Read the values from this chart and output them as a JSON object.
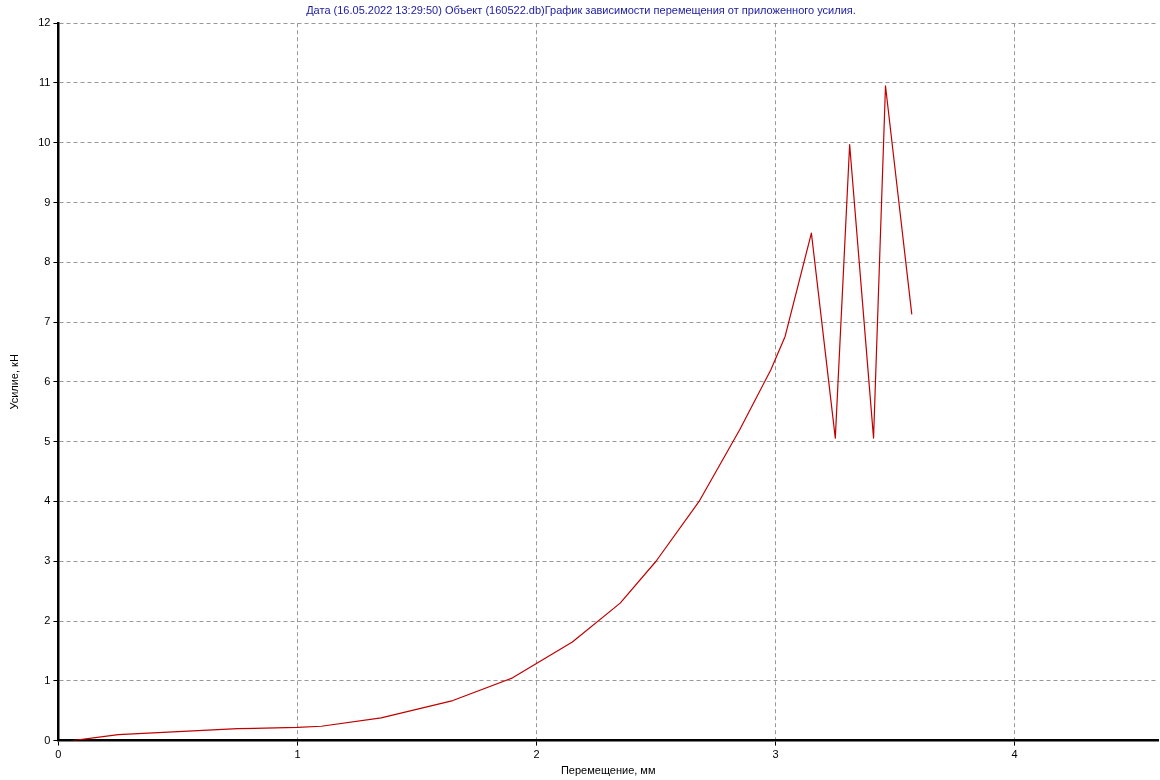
{
  "chart_data": {
    "type": "line",
    "title": "Дата (16.05.2022 13:29:50) Объект (160522.db)График зависимости перемещения от приложенного усилия.",
    "xlabel": "Перемещение, мм",
    "ylabel": "Усилие, кН",
    "x": [
      0.06,
      0.25,
      0.5,
      0.75,
      1.0,
      1.1,
      1.35,
      1.65,
      1.9,
      2.15,
      2.35,
      2.5,
      2.68,
      2.85,
      2.98,
      3.04,
      3.15,
      3.25,
      3.31,
      3.41,
      3.46,
      3.57
    ],
    "series": [
      {
        "color": "#c00000",
        "values": [
          0,
          0.1,
          0.15,
          0.2,
          0.22,
          0.24,
          0.38,
          0.67,
          1.05,
          1.65,
          2.3,
          3.0,
          4.0,
          5.2,
          6.2,
          6.76,
          8.49,
          5.06,
          9.97,
          5.06,
          10.95,
          7.13
        ]
      }
    ],
    "xlim": [
      0,
      4.6
    ],
    "xticks": [
      0,
      1,
      2,
      3,
      4
    ],
    "ylim": [
      0,
      12
    ],
    "yticks": [
      0,
      1,
      2,
      3,
      4,
      5,
      6,
      7,
      8,
      9,
      10,
      11,
      12
    ],
    "grid": true,
    "legend": false,
    "marker": "none",
    "line_style": "solid"
  }
}
